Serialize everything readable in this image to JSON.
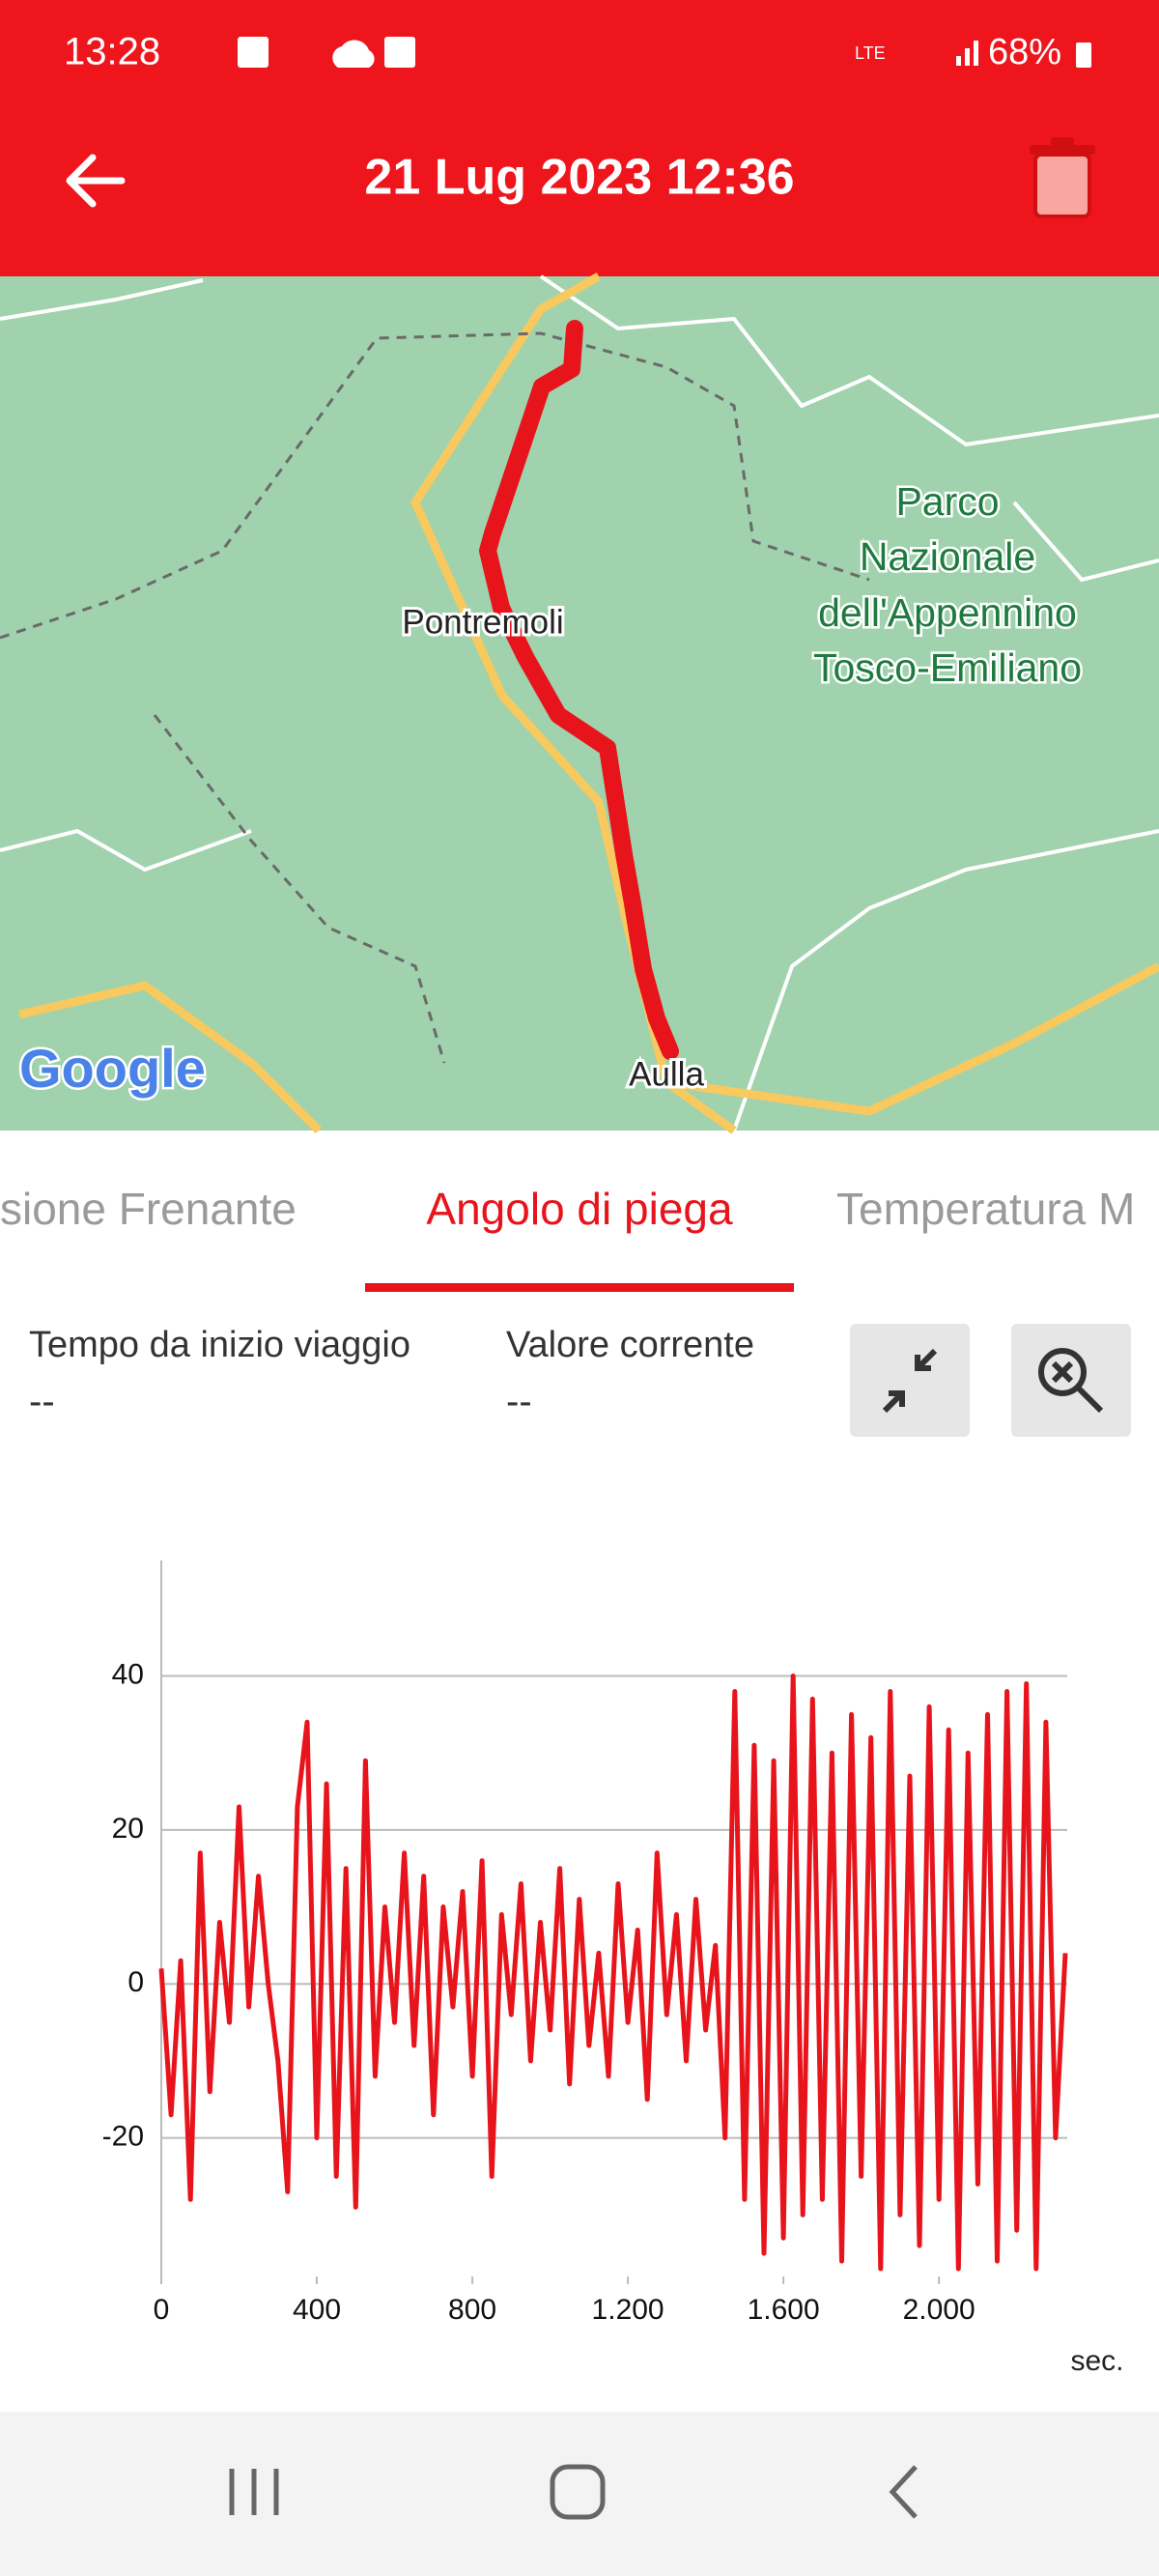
{
  "status_bar": {
    "time": "13:28",
    "battery": "68%"
  },
  "app_bar": {
    "title": "21 Lug 2023 12:36"
  },
  "map": {
    "labels": {
      "town_1": "Pontremoli",
      "town_2": "Aulla",
      "park": [
        "Parco",
        "Nazionale",
        "dell'Appennino",
        "Tosco-Emiliano"
      ],
      "logo": "Google"
    }
  },
  "tabs": [
    "sione Frenante",
    "Angolo di piega",
    "Temperatura M"
  ],
  "info": {
    "fields": [
      {
        "label": "Tempo da inizio viaggio",
        "value": "--"
      },
      {
        "label": "Valore corrente",
        "value": "--"
      }
    ]
  },
  "chart_data": {
    "type": "line",
    "color": "#e8141c",
    "x_label": "sec.",
    "x": [
      0,
      25,
      50,
      75,
      100,
      125,
      150,
      175,
      200,
      225,
      250,
      275,
      300,
      325,
      350,
      375,
      400,
      425,
      450,
      475,
      500,
      525,
      550,
      575,
      600,
      625,
      650,
      675,
      700,
      725,
      750,
      775,
      800,
      825,
      850,
      875,
      900,
      925,
      950,
      975,
      1000,
      1025,
      1050,
      1075,
      1100,
      1125,
      1150,
      1175,
      1200,
      1225,
      1250,
      1275,
      1300,
      1325,
      1350,
      1375,
      1400,
      1425,
      1450,
      1475,
      1500,
      1525,
      1550,
      1575,
      1600,
      1625,
      1650,
      1675,
      1700,
      1725,
      1750,
      1775,
      1800,
      1825,
      1850,
      1875,
      1900,
      1925,
      1950,
      1975,
      2000,
      2025,
      2050,
      2075,
      2100,
      2125,
      2150,
      2175,
      2200,
      2225,
      2250,
      2275,
      2300,
      2325
    ],
    "values": [
      2,
      -17,
      3,
      -28,
      17,
      -14,
      8,
      -5,
      23,
      -3,
      14,
      0,
      -10,
      -27,
      23,
      34,
      -20,
      26,
      -25,
      15,
      -29,
      29,
      -12,
      10,
      -5,
      17,
      -8,
      14,
      -17,
      10,
      -3,
      12,
      -12,
      16,
      -25,
      9,
      -4,
      13,
      -10,
      8,
      -6,
      15,
      -13,
      11,
      -8,
      4,
      -12,
      13,
      -5,
      7,
      -15,
      17,
      -4,
      9,
      -10,
      11,
      -6,
      5,
      -20,
      38,
      -28,
      31,
      -35,
      29,
      -33,
      40,
      -30,
      37,
      -28,
      30,
      -36,
      35,
      -25,
      32,
      -37,
      38,
      -30,
      27,
      -34,
      36,
      -28,
      33,
      -37,
      30,
      -26,
      35,
      -36,
      38,
      -32,
      39,
      -37,
      34,
      -20,
      4
    ],
    "xlim": [
      0,
      2330
    ],
    "ylim": [
      -38,
      55
    ],
    "xticks": [
      0,
      400,
      800,
      {
        "value": 1200,
        "label": "1.200"
      },
      {
        "value": 1600,
        "label": "1.600"
      },
      {
        "value": 2000,
        "label": "2.000"
      }
    ],
    "yticks": [
      -20,
      0,
      20,
      40
    ],
    "grid": true
  }
}
